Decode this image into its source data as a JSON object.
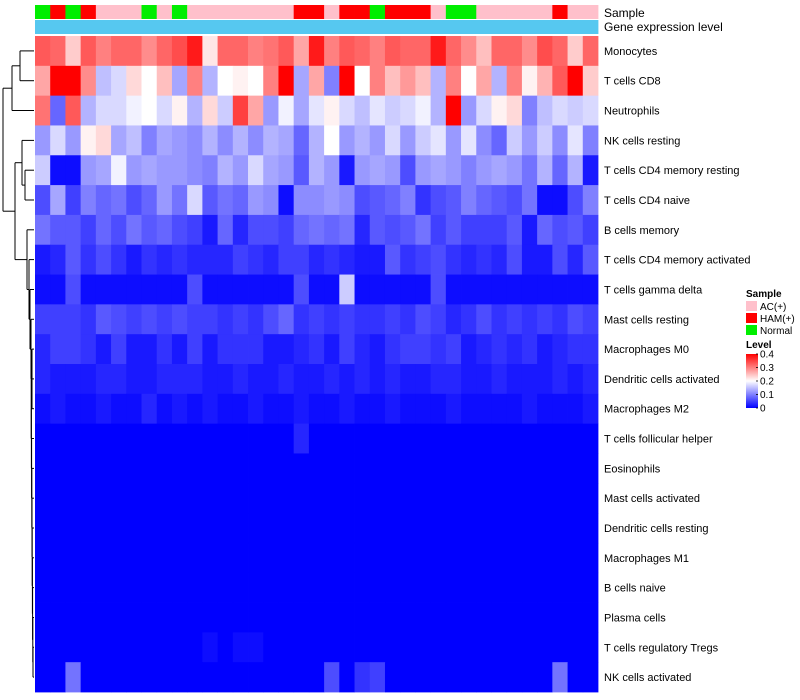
{
  "chart_data": {
    "type": "heatmap",
    "annotation_labels": {
      "sample": "Sample",
      "gene": "Gene expression level"
    },
    "rows": [
      "Monocytes",
      "T cells CD8",
      "Neutrophils",
      "NK cells resting",
      "T cells CD4 memory resting",
      "T cells CD4 naive",
      "B cells memory",
      "T cells CD4 memory activated",
      "T cells gamma delta",
      "Mast cells resting",
      "Macrophages M0",
      "Dendritic cells activated",
      "Macrophages M2",
      "T cells follicular helper",
      "Eosinophils",
      "Mast cells activated",
      "Dendritic cells resting",
      "Macrophages M1",
      "B cells naive",
      "Plasma cells",
      "T cells regulatory  Tregs",
      "NK cells activated"
    ],
    "sample_groups": [
      "Normal",
      "HAM(+)",
      "Normal",
      "HAM(+)",
      "AC(+)",
      "AC(+)",
      "AC(+)",
      "Normal",
      "AC(+)",
      "Normal",
      "AC(+)",
      "AC(+)",
      "AC(+)",
      "AC(+)",
      "AC(+)",
      "AC(+)",
      "AC(+)",
      "HAM(+)",
      "HAM(+)",
      "AC(+)",
      "HAM(+)",
      "HAM(+)",
      "Normal",
      "HAM(+)",
      "HAM(+)",
      "HAM(+)",
      "AC(+)",
      "Normal",
      "Normal",
      "AC(+)",
      "AC(+)",
      "AC(+)",
      "AC(+)",
      "AC(+)",
      "HAM(+)",
      "AC(+)",
      "AC(+)"
    ],
    "sample_colors": {
      "AC(+)": "#FFC0CB",
      "HAM(+)": "#FF0000",
      "Normal": "#00EE00"
    },
    "gene_expression_bar_color": "#56C8F0",
    "values": [
      [
        0.33,
        0.32,
        0.24,
        0.33,
        0.3,
        0.32,
        0.32,
        0.29,
        0.32,
        0.34,
        0.38,
        0.22,
        0.32,
        0.32,
        0.3,
        0.31,
        0.33,
        0.27,
        0.38,
        0.3,
        0.33,
        0.32,
        0.3,
        0.33,
        0.32,
        0.32,
        0.38,
        0.32,
        0.29,
        0.25,
        0.32,
        0.32,
        0.29,
        0.34,
        0.32,
        0.24,
        0.32
      ],
      [
        0.27,
        0.4,
        0.4,
        0.29,
        0.15,
        0.17,
        0.23,
        0.2,
        0.25,
        0.13,
        0.3,
        0.14,
        0.2,
        0.21,
        0.2,
        0.3,
        0.4,
        0.13,
        0.27,
        0.1,
        0.4,
        0.2,
        0.3,
        0.25,
        0.28,
        0.25,
        0.14,
        0.3,
        0.2,
        0.27,
        0.14,
        0.3,
        0.21,
        0.26,
        0.33,
        0.4,
        0.24
      ],
      [
        0.31,
        0.08,
        0.33,
        0.14,
        0.17,
        0.17,
        0.19,
        0.2,
        0.17,
        0.21,
        0.14,
        0.23,
        0.16,
        0.35,
        0.27,
        0.12,
        0.19,
        0.13,
        0.18,
        0.21,
        0.17,
        0.15,
        0.18,
        0.16,
        0.17,
        0.19,
        0.14,
        0.4,
        0.12,
        0.17,
        0.21,
        0.23,
        0.1,
        0.15,
        0.17,
        0.16,
        0.17
      ],
      [
        0.12,
        0.17,
        0.12,
        0.21,
        0.23,
        0.13,
        0.15,
        0.1,
        0.13,
        0.12,
        0.11,
        0.14,
        0.11,
        0.14,
        0.11,
        0.14,
        0.13,
        0.08,
        0.14,
        0.2,
        0.12,
        0.14,
        0.12,
        0.17,
        0.12,
        0.16,
        0.18,
        0.12,
        0.18,
        0.11,
        0.08,
        0.16,
        0.12,
        0.16,
        0.11,
        0.18,
        0.1
      ],
      [
        0.16,
        0.01,
        0.01,
        0.12,
        0.13,
        0.19,
        0.12,
        0.13,
        0.12,
        0.12,
        0.11,
        0.1,
        0.14,
        0.12,
        0.17,
        0.13,
        0.12,
        0.07,
        0.14,
        0.12,
        0.02,
        0.12,
        0.13,
        0.12,
        0.06,
        0.12,
        0.13,
        0.12,
        0.1,
        0.12,
        0.13,
        0.12,
        0.09,
        0.14,
        0.08,
        0.14,
        0.02
      ],
      [
        0.06,
        0.13,
        0.05,
        0.1,
        0.08,
        0.09,
        0.06,
        0.08,
        0.12,
        0.09,
        0.17,
        0.07,
        0.09,
        0.08,
        0.12,
        0.11,
        0.01,
        0.11,
        0.11,
        0.12,
        0.11,
        0.06,
        0.07,
        0.08,
        0.1,
        0.04,
        0.06,
        0.07,
        0.1,
        0.08,
        0.07,
        0.06,
        0.09,
        0.01,
        0.01,
        0.06,
        0.1
      ],
      [
        0.09,
        0.07,
        0.07,
        0.05,
        0.08,
        0.06,
        0.09,
        0.07,
        0.08,
        0.06,
        0.05,
        0.02,
        0.08,
        0.03,
        0.06,
        0.06,
        0.05,
        0.08,
        0.09,
        0.08,
        0.09,
        0.03,
        0.07,
        0.06,
        0.07,
        0.09,
        0.05,
        0.07,
        0.05,
        0.05,
        0.05,
        0.07,
        0.02,
        0.08,
        0.06,
        0.07,
        0.05
      ],
      [
        0.02,
        0.03,
        0.07,
        0.04,
        0.06,
        0.04,
        0.02,
        0.04,
        0.03,
        0.04,
        0.03,
        0.03,
        0.03,
        0.05,
        0.04,
        0.03,
        0.05,
        0.05,
        0.03,
        0.04,
        0.03,
        0.02,
        0.02,
        0.07,
        0.04,
        0.05,
        0.06,
        0.04,
        0.03,
        0.04,
        0.03,
        0.06,
        0.02,
        0.02,
        0.06,
        0.03,
        0.07
      ],
      [
        0.01,
        0.01,
        0.06,
        0.01,
        0.01,
        0.01,
        0.01,
        0.01,
        0.01,
        0.01,
        0.06,
        0.01,
        0.01,
        0.01,
        0.01,
        0.01,
        0.01,
        0.06,
        0.01,
        0.01,
        0.16,
        0.01,
        0.01,
        0.01,
        0.01,
        0.01,
        0.06,
        0.01,
        0.01,
        0.01,
        0.01,
        0.01,
        0.01,
        0.01,
        0.01,
        0.01,
        0.01
      ],
      [
        0.05,
        0.05,
        0.05,
        0.04,
        0.07,
        0.06,
        0.05,
        0.06,
        0.05,
        0.06,
        0.05,
        0.05,
        0.04,
        0.05,
        0.04,
        0.06,
        0.08,
        0.04,
        0.05,
        0.04,
        0.05,
        0.04,
        0.04,
        0.05,
        0.04,
        0.06,
        0.05,
        0.03,
        0.04,
        0.06,
        0.04,
        0.05,
        0.04,
        0.05,
        0.04,
        0.06,
        0.05
      ],
      [
        0.03,
        0.05,
        0.05,
        0.04,
        0.02,
        0.05,
        0.02,
        0.02,
        0.04,
        0.02,
        0.05,
        0.02,
        0.04,
        0.04,
        0.04,
        0.02,
        0.02,
        0.03,
        0.04,
        0.02,
        0.05,
        0.03,
        0.02,
        0.04,
        0.05,
        0.05,
        0.04,
        0.05,
        0.02,
        0.03,
        0.04,
        0.03,
        0.04,
        0.02,
        0.03,
        0.04,
        0.04
      ],
      [
        0.03,
        0.02,
        0.02,
        0.02,
        0.03,
        0.03,
        0.02,
        0.02,
        0.03,
        0.03,
        0.03,
        0.02,
        0.02,
        0.03,
        0.02,
        0.02,
        0.03,
        0.02,
        0.02,
        0.03,
        0.02,
        0.03,
        0.02,
        0.03,
        0.02,
        0.02,
        0.03,
        0.03,
        0.02,
        0.02,
        0.03,
        0.02,
        0.02,
        0.02,
        0.03,
        0.02,
        0.03
      ],
      [
        0.01,
        0.02,
        0.01,
        0.01,
        0.02,
        0.01,
        0.01,
        0.03,
        0.01,
        0.02,
        0.01,
        0.02,
        0.01,
        0.01,
        0.02,
        0.01,
        0.01,
        0.02,
        0.01,
        0.01,
        0.02,
        0.01,
        0.01,
        0.02,
        0.01,
        0.01,
        0.01,
        0.02,
        0.01,
        0.01,
        0.01,
        0.01,
        0.02,
        0.01,
        0.01,
        0.01,
        0.02
      ],
      [
        0.0,
        0.0,
        0.0,
        0.0,
        0.0,
        0.0,
        0.0,
        0.0,
        0.0,
        0.0,
        0.0,
        0.0,
        0.0,
        0.0,
        0.0,
        0.0,
        0.0,
        0.03,
        0.0,
        0.0,
        0.0,
        0.0,
        0.0,
        0.0,
        0.0,
        0.0,
        0.0,
        0.0,
        0.0,
        0.0,
        0.0,
        0.0,
        0.0,
        0.0,
        0.0,
        0.0,
        0.0
      ],
      [
        0.0,
        0.0,
        0.0,
        0.0,
        0.0,
        0.0,
        0.0,
        0.0,
        0.0,
        0.0,
        0.0,
        0.0,
        0.0,
        0.0,
        0.0,
        0.0,
        0.0,
        0.0,
        0.0,
        0.0,
        0.0,
        0.0,
        0.0,
        0.0,
        0.0,
        0.0,
        0.0,
        0.0,
        0.0,
        0.0,
        0.0,
        0.0,
        0.0,
        0.0,
        0.0,
        0.0,
        0.0
      ],
      [
        0.0,
        0.0,
        0.0,
        0.0,
        0.0,
        0.0,
        0.0,
        0.0,
        0.0,
        0.0,
        0.0,
        0.0,
        0.0,
        0.0,
        0.0,
        0.0,
        0.0,
        0.0,
        0.0,
        0.0,
        0.0,
        0.0,
        0.0,
        0.0,
        0.0,
        0.0,
        0.0,
        0.0,
        0.0,
        0.0,
        0.0,
        0.0,
        0.0,
        0.0,
        0.0,
        0.0,
        0.0
      ],
      [
        0.0,
        0.0,
        0.0,
        0.0,
        0.0,
        0.0,
        0.0,
        0.0,
        0.0,
        0.0,
        0.0,
        0.0,
        0.0,
        0.0,
        0.0,
        0.0,
        0.0,
        0.0,
        0.0,
        0.0,
        0.0,
        0.0,
        0.0,
        0.0,
        0.0,
        0.0,
        0.0,
        0.0,
        0.0,
        0.0,
        0.0,
        0.0,
        0.0,
        0.0,
        0.0,
        0.0,
        0.0
      ],
      [
        0.0,
        0.0,
        0.0,
        0.0,
        0.0,
        0.0,
        0.0,
        0.0,
        0.0,
        0.0,
        0.0,
        0.0,
        0.0,
        0.0,
        0.0,
        0.0,
        0.0,
        0.0,
        0.0,
        0.0,
        0.0,
        0.0,
        0.0,
        0.0,
        0.0,
        0.0,
        0.0,
        0.0,
        0.0,
        0.0,
        0.0,
        0.0,
        0.0,
        0.0,
        0.0,
        0.0,
        0.0
      ],
      [
        0.0,
        0.0,
        0.0,
        0.0,
        0.0,
        0.0,
        0.0,
        0.0,
        0.0,
        0.0,
        0.0,
        0.0,
        0.0,
        0.0,
        0.0,
        0.0,
        0.0,
        0.0,
        0.0,
        0.0,
        0.0,
        0.0,
        0.0,
        0.0,
        0.0,
        0.0,
        0.0,
        0.0,
        0.0,
        0.0,
        0.0,
        0.0,
        0.0,
        0.0,
        0.0,
        0.0,
        0.0
      ],
      [
        0.0,
        0.0,
        0.0,
        0.0,
        0.0,
        0.0,
        0.0,
        0.0,
        0.0,
        0.0,
        0.0,
        0.0,
        0.0,
        0.0,
        0.0,
        0.0,
        0.0,
        0.0,
        0.0,
        0.0,
        0.0,
        0.0,
        0.0,
        0.0,
        0.0,
        0.0,
        0.0,
        0.0,
        0.0,
        0.0,
        0.0,
        0.0,
        0.0,
        0.0,
        0.0,
        0.0,
        0.0
      ],
      [
        0.0,
        0.0,
        0.0,
        0.0,
        0.0,
        0.0,
        0.0,
        0.0,
        0.0,
        0.0,
        0.0,
        0.01,
        0.0,
        0.01,
        0.01,
        0.0,
        0.0,
        0.0,
        0.0,
        0.0,
        0.0,
        0.0,
        0.0,
        0.0,
        0.0,
        0.0,
        0.0,
        0.0,
        0.0,
        0.0,
        0.0,
        0.0,
        0.0,
        0.0,
        0.0,
        0.0,
        0.0
      ],
      [
        0.0,
        0.0,
        0.09,
        0.0,
        0.0,
        0.0,
        0.0,
        0.0,
        0.0,
        0.0,
        0.0,
        0.0,
        0.0,
        0.0,
        0.0,
        0.0,
        0.0,
        0.0,
        0.0,
        0.06,
        0.0,
        0.04,
        0.05,
        0.0,
        0.0,
        0.0,
        0.0,
        0.0,
        0.0,
        0.0,
        0.0,
        0.0,
        0.0,
        0.0,
        0.09,
        0.0,
        0.0
      ]
    ],
    "legend": {
      "sample_title": "Sample",
      "sample_entries": [
        "AC(+)",
        "HAM(+)",
        "Normal"
      ],
      "level_title": "Level",
      "level_ticks": [
        "0.4",
        "0.3",
        "0.2",
        "0.1",
        "0"
      ],
      "level_tick_values": [
        0.4,
        0.3,
        0.2,
        0.1,
        0
      ],
      "level_range": [
        0,
        0.4
      ]
    },
    "colors": {
      "low": "#0000FF",
      "mid": "#FFFFFF",
      "high": "#FF0000"
    }
  }
}
